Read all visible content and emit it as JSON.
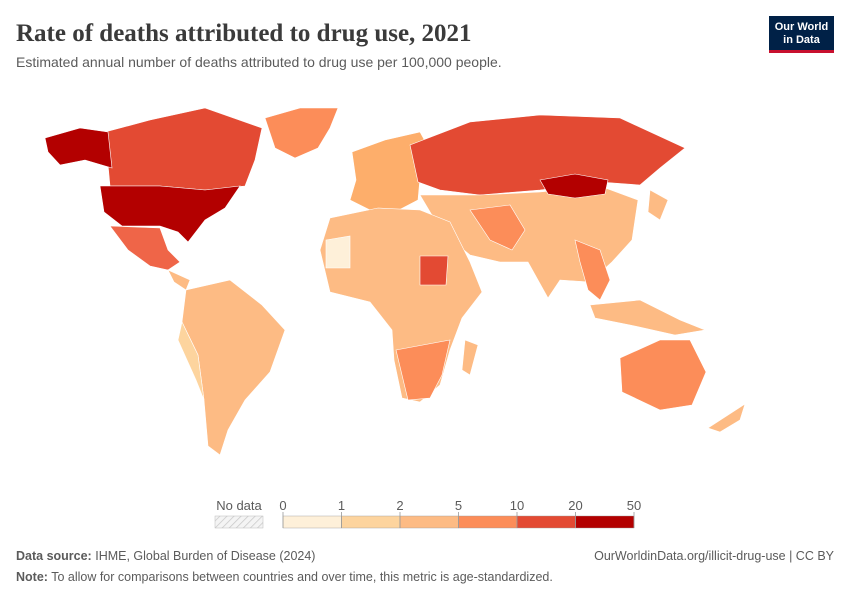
{
  "header": {
    "title": "Rate of deaths attributed to drug use, 2021",
    "subtitle": "Estimated annual number of deaths attributed to drug use per 100,000 people."
  },
  "logo": {
    "line1": "Our World",
    "line2": "in Data"
  },
  "legend": {
    "no_data": "No data",
    "ticks": [
      0,
      1,
      2,
      5,
      10,
      20,
      50
    ],
    "colors": [
      "#fef0d9",
      "#fdd49e",
      "#fdbb84",
      "#fc8d59",
      "#e34a33",
      "#b30000"
    ]
  },
  "footer": {
    "source_label": "Data source:",
    "source": "IHME, Global Burden of Disease (2024)",
    "url": "OurWorldinData.org/illicit-drug-use | CC BY",
    "note_label": "Note:",
    "note": "To allow for comparisons between countries and over time, this metric is age-standardized."
  }
}
